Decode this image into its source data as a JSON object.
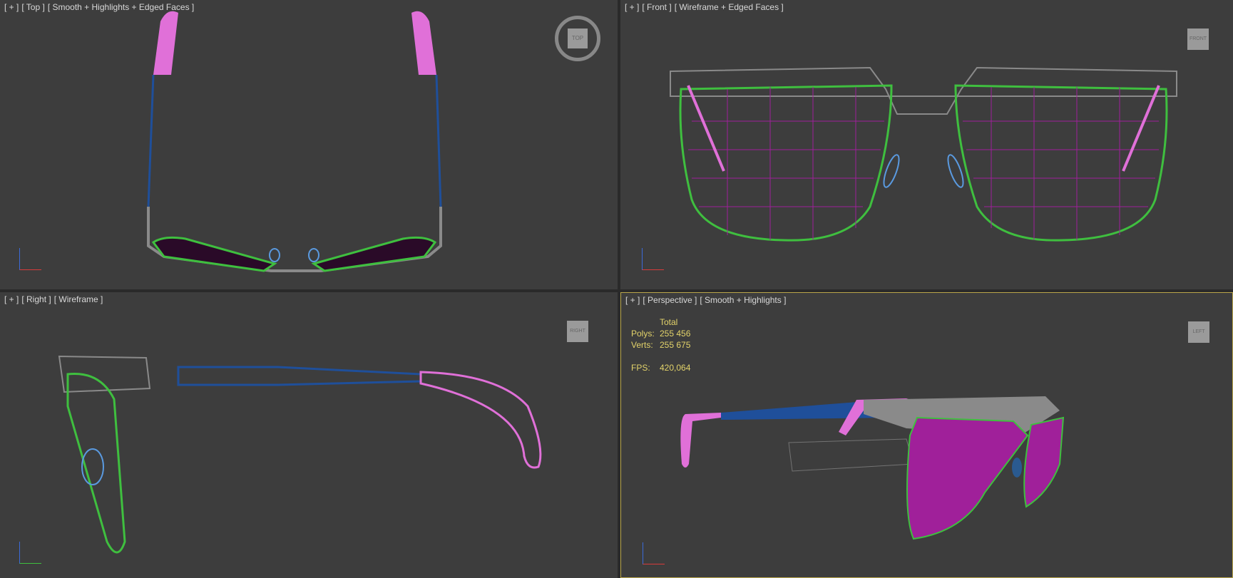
{
  "viewports": [
    {
      "id": "top",
      "menu": "[ + ]",
      "view": "[ Top ]",
      "shading": "[ Smooth + Highlights + Edged Faces ]",
      "navcube": "TOP",
      "axes": [
        "x",
        "y"
      ]
    },
    {
      "id": "front",
      "menu": "[ + ]",
      "view": "[ Front ]",
      "shading": "[ Wireframe + Edged Faces ]",
      "navcube": "FRONT",
      "axes": [
        "x",
        "z"
      ]
    },
    {
      "id": "right",
      "menu": "[ + ]",
      "view": "[ Right ]",
      "shading": "[ Wireframe ]",
      "navcube": "RIGHT",
      "axes": [
        "y",
        "z"
      ]
    },
    {
      "id": "perspective",
      "menu": "[ + ]",
      "view": "[ Perspective ]",
      "shading": "[ Smooth + Highlights ]",
      "navcube": "LEFT",
      "axes": [
        "x",
        "y",
        "z"
      ],
      "active": true
    }
  ],
  "stats": {
    "header": "Total",
    "polys_label": "Polys:",
    "polys": "255 456",
    "verts_label": "Verts:",
    "verts": "255 675",
    "fps_label": "FPS:",
    "fps": "420,064"
  },
  "colors": {
    "background": "#3d3d3d",
    "frame": "#8a8a8a",
    "lens_rim": "#3fbf3f",
    "lens": "#a0209a",
    "temple_tip": "#e070d8",
    "temple": "#1f4f9a",
    "nose_pad": "#5a9ae0",
    "active_border": "#b9a64a",
    "stats_text": "#e3d36a"
  }
}
